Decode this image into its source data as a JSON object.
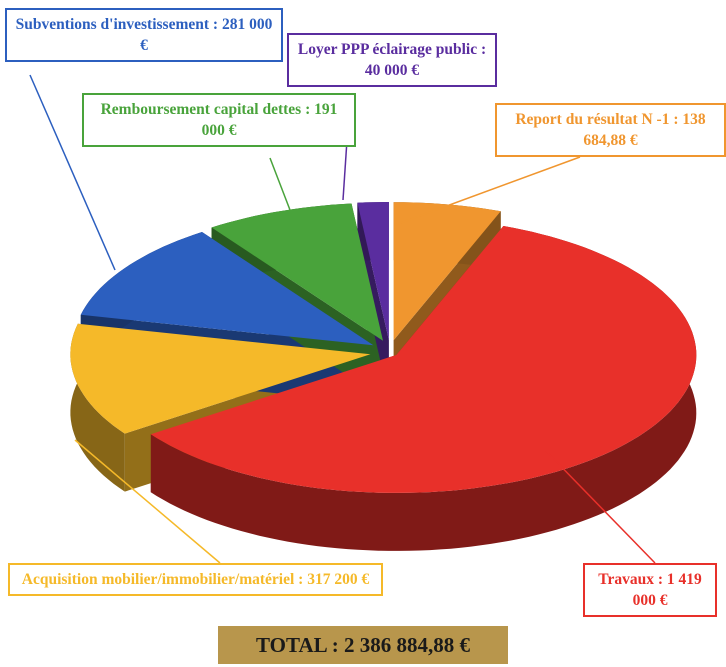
{
  "chart_data": {
    "type": "pie",
    "categories": [
      "Report du résultat N -1 :",
      "Travaux :",
      "Acquisition mobilier/immobilier/matériel :",
      "Subventions d'investissement :",
      "Remboursement capital dettes :",
      "Loyer PPP éclairage public :"
    ],
    "values": [
      138684.88,
      1419000,
      317200,
      281000,
      191000,
      40000
    ],
    "value_labels": [
      "138 684,88 €",
      "1 419 000 €",
      "317 200 €",
      "281 000 €",
      "191 000 €",
      "40 000 €"
    ],
    "colors": [
      "#f0962f",
      "#e8302a",
      "#f5b929",
      "#2c5fbf",
      "#49a33b",
      "#5a2d9f"
    ],
    "total": 2386884.88,
    "total_label": "TOTAL : 2 386 884,88 €"
  }
}
